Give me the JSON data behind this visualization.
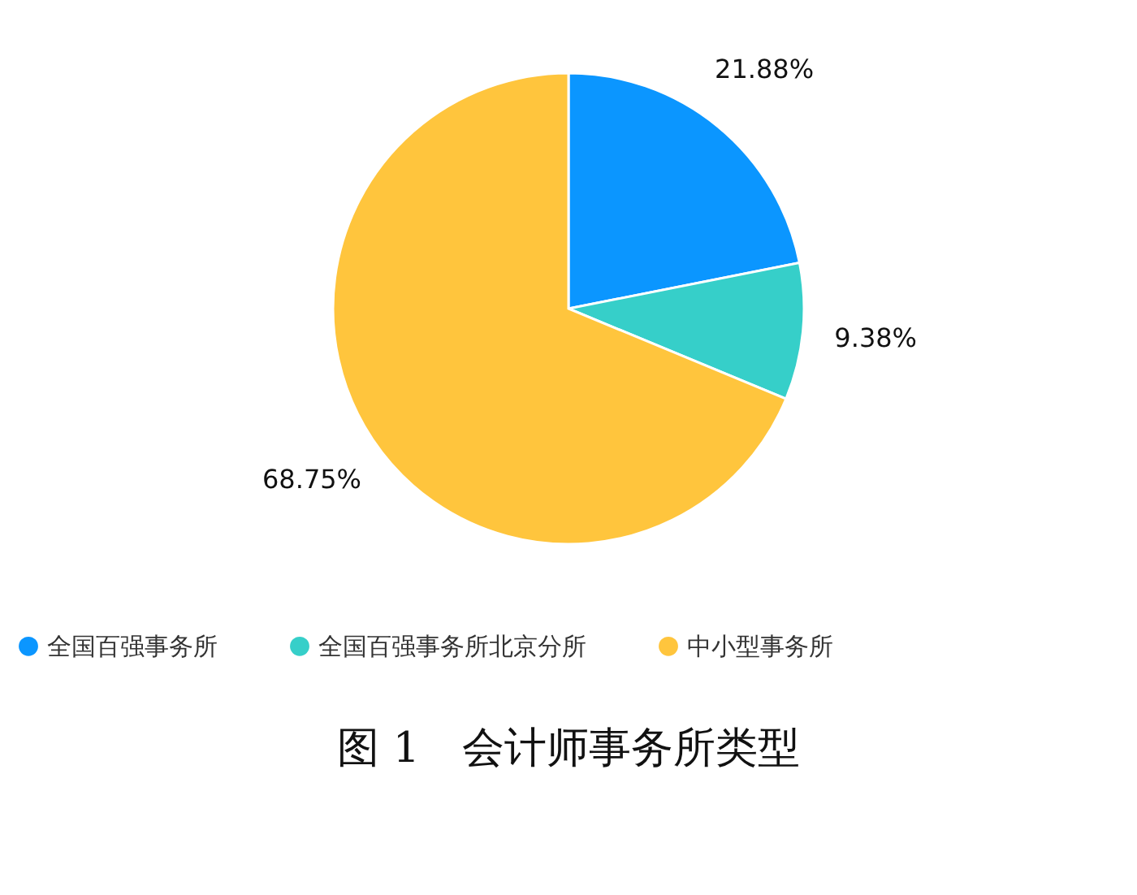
{
  "chart_data": {
    "type": "pie",
    "title": "图 1　会计师事务所类型",
    "categories": [
      "全国百强事务所",
      "全国百强事务所北京分所",
      "中小型事务所"
    ],
    "values": [
      21.88,
      9.38,
      68.75
    ],
    "colors": [
      "#0b96ff",
      "#36cfc9",
      "#ffc53d"
    ],
    "value_labels": [
      "21.88%",
      "9.38%",
      "68.75%"
    ],
    "legend": "bottom"
  }
}
